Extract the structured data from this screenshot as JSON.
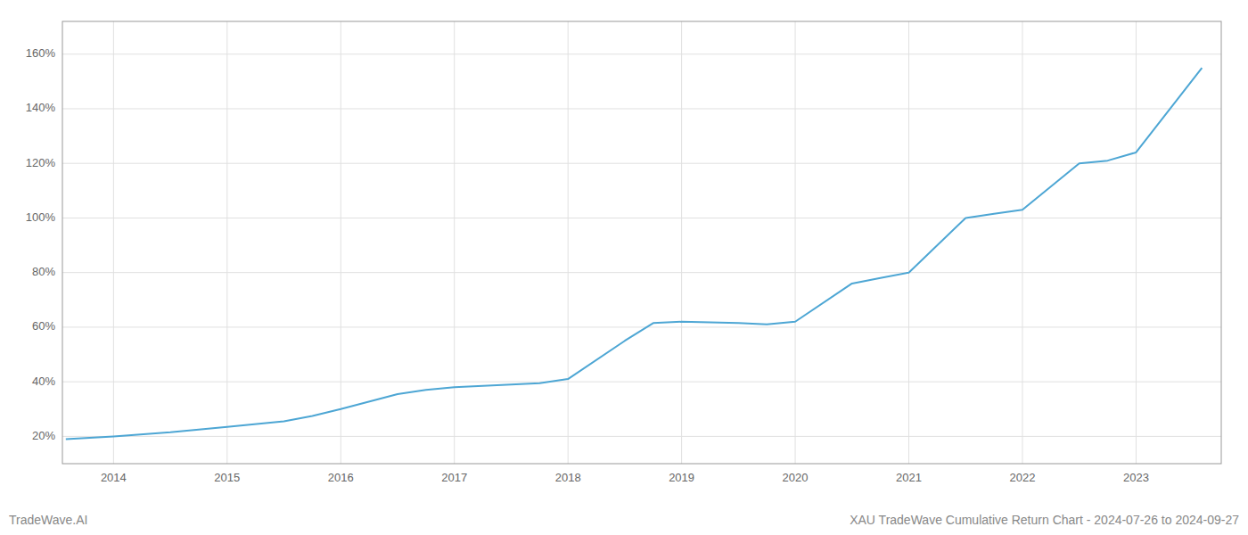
{
  "chart_data": {
    "type": "line",
    "title": "XAU TradeWave Cumulative Return Chart - 2024-07-26 to 2024-09-27",
    "annotations": [
      "TradeWave.AI"
    ],
    "color": "#4da6d4",
    "grid": true,
    "x": [
      2013.58,
      2014.0,
      2014.5,
      2014.75,
      2015.0,
      2015.5,
      2015.75,
      2016.0,
      2016.5,
      2016.75,
      2017.0,
      2017.5,
      2017.75,
      2018.0,
      2018.5,
      2018.75,
      2019.0,
      2019.5,
      2019.75,
      2020.0,
      2020.5,
      2020.75,
      2021.0,
      2021.5,
      2021.75,
      2022.0,
      2022.5,
      2022.75,
      2023.0,
      2023.58
    ],
    "values": [
      19.0,
      20.0,
      21.5,
      22.5,
      23.5,
      25.5,
      27.5,
      30.0,
      35.5,
      37.0,
      38.0,
      39.0,
      39.5,
      41.0,
      55.0,
      61.5,
      62.0,
      61.5,
      61.0,
      62.0,
      76.0,
      78.0,
      80.0,
      100.0,
      101.5,
      103.0,
      120.0,
      121.0,
      124.0,
      155.0
    ],
    "xlim": [
      2013.55,
      2023.75
    ],
    "xticks": [
      2014,
      2015,
      2016,
      2017,
      2018,
      2019,
      2020,
      2021,
      2022,
      2023
    ],
    "ylim": [
      10,
      172
    ],
    "yticks": [
      {
        "value": 20,
        "label": "20%"
      },
      {
        "value": 40,
        "label": "40%"
      },
      {
        "value": 60,
        "label": "60%"
      },
      {
        "value": 80,
        "label": "80%"
      },
      {
        "value": 100,
        "label": "100%"
      },
      {
        "value": 120,
        "label": "120%"
      },
      {
        "value": 140,
        "label": "140%"
      },
      {
        "value": 160,
        "label": "160%"
      }
    ]
  }
}
